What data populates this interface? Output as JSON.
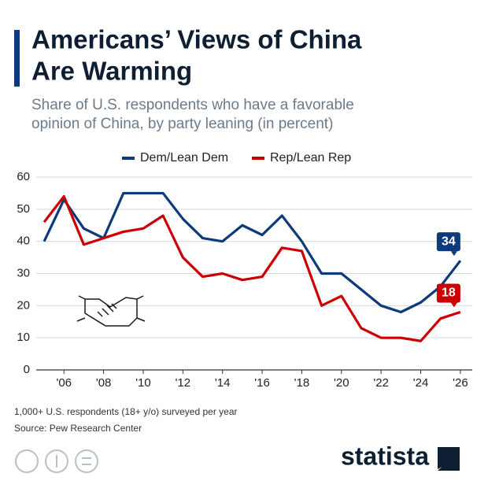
{
  "title": "Americans’ Views of China Are Warming",
  "title_lines": [
    "Americans’ Views of China",
    "Are Warming"
  ],
  "subtitle_lines": [
    "Share of U.S. respondents who have a favorable",
    "opinion of China, by party leaning (in percent)"
  ],
  "chart_data": {
    "type": "line",
    "x": [
      2005,
      2006,
      2007,
      2008,
      2009,
      2010,
      2011,
      2012,
      2013,
      2014,
      2015,
      2016,
      2017,
      2018,
      2019,
      2020,
      2021,
      2022,
      2023,
      2024,
      2025,
      2026
    ],
    "series": [
      {
        "name": "Dem/Lean Dem",
        "color": "#0d3a7d",
        "values": [
          40,
          53,
          44,
          41,
          55,
          55,
          55,
          47,
          41,
          40,
          45,
          42,
          48,
          40,
          30,
          30,
          25,
          20,
          18,
          21,
          26,
          34
        ]
      },
      {
        "name": "Rep/Lean Rep",
        "color": "#cc0000",
        "values": [
          46,
          54,
          39,
          41,
          43,
          44,
          48,
          35,
          29,
          30,
          28,
          29,
          38,
          37,
          20,
          23,
          13,
          10,
          10,
          9,
          16,
          18
        ]
      }
    ],
    "xlim": [
      2004.6,
      2026.6
    ],
    "xticks": [
      {
        "value": 2006,
        "label": "'06"
      },
      {
        "value": 2008,
        "label": "'08"
      },
      {
        "value": 2010,
        "label": "'10"
      },
      {
        "value": 2012,
        "label": "'12"
      },
      {
        "value": 2014,
        "label": "'14"
      },
      {
        "value": 2016,
        "label": "'16"
      },
      {
        "value": 2018,
        "label": "'18"
      },
      {
        "value": 2020,
        "label": "'20"
      },
      {
        "value": 2022,
        "label": "'22"
      },
      {
        "value": 2024,
        "label": "'24"
      },
      {
        "value": 2026,
        "label": "'26"
      }
    ],
    "ylim": [
      0,
      60
    ],
    "yticks": [
      0,
      10,
      20,
      30,
      40,
      50,
      60
    ],
    "grid": true
  },
  "footer": {
    "notes": [
      "1,000+ U.S. respondents (18+ y/o) surveyed per year",
      "Source: Pew Research Center"
    ],
    "brand": "statista"
  }
}
